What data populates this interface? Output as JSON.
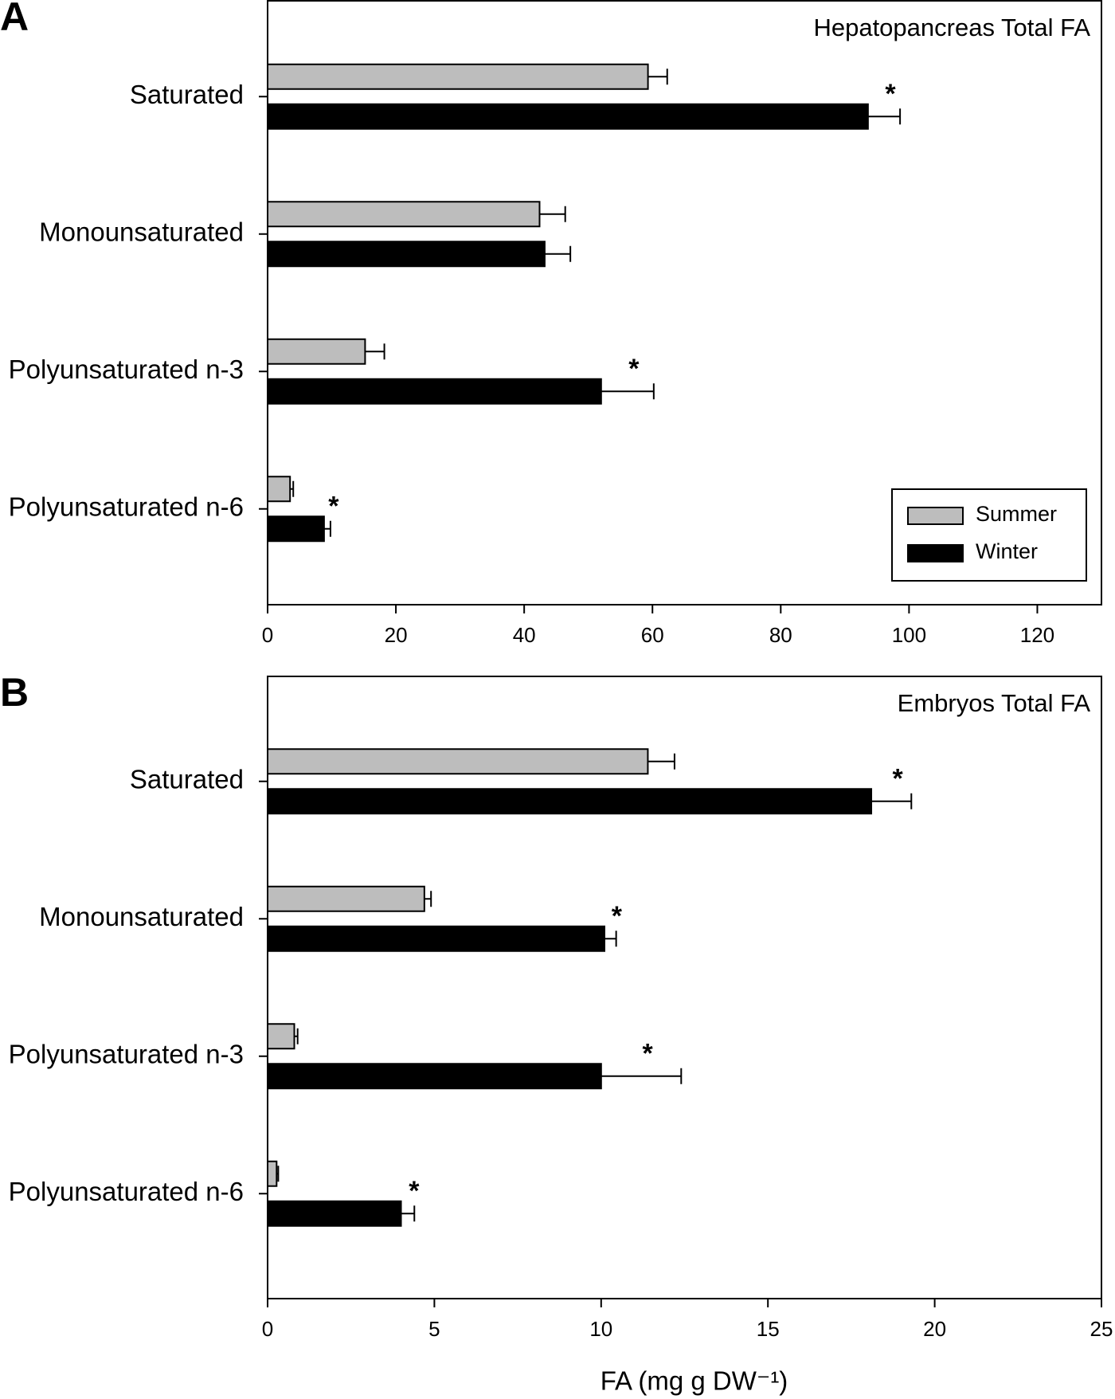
{
  "chart_data": [
    {
      "type": "bar",
      "orientation": "horizontal",
      "panel": "A",
      "title": "Hepatopancreas Total FA",
      "categories": [
        "Saturated",
        "Monounsaturated",
        "Polyunsaturated n-3",
        "Polyunsaturated n-6"
      ],
      "series": [
        {
          "name": "Summer",
          "color": "#bdbdbd",
          "values": [
            59.3,
            42.4,
            15.2,
            3.5
          ],
          "errors": [
            3,
            4,
            3,
            0.5
          ]
        },
        {
          "name": "Winter",
          "color": "#000000",
          "values": [
            93.6,
            43.2,
            52,
            8.8
          ],
          "errors": [
            5,
            4,
            8.2,
            1
          ]
        }
      ],
      "annotations": [
        {
          "text": "*",
          "category": "Saturated",
          "series": "Winter"
        },
        {
          "text": "*",
          "category": "Polyunsaturated n-3",
          "series": "Winter"
        },
        {
          "text": "*",
          "category": "Polyunsaturated n-6",
          "series": "Winter"
        }
      ],
      "xlim": [
        0,
        130
      ],
      "xticks": [
        0,
        20,
        40,
        60,
        80,
        100,
        120
      ],
      "legend": "lower right"
    },
    {
      "type": "bar",
      "orientation": "horizontal",
      "panel": "B",
      "title": "Embryos Total FA",
      "categories": [
        "Saturated",
        "Monounsaturated",
        "Polyunsaturated n-3",
        "Polyunsaturated n-6"
      ],
      "series": [
        {
          "name": "Summer",
          "color": "#bdbdbd",
          "values": [
            11.4,
            4.7,
            0.8,
            0.27
          ],
          "errors": [
            0.8,
            0.2,
            0.1,
            0.05
          ]
        },
        {
          "name": "Winter",
          "color": "#000000",
          "values": [
            18.1,
            10.1,
            10,
            4
          ],
          "errors": [
            1.2,
            0.35,
            2.4,
            0.4
          ]
        }
      ],
      "annotations": [
        {
          "text": "*",
          "category": "Saturated",
          "series": "Winter"
        },
        {
          "text": "*",
          "category": "Monounsaturated",
          "series": "Winter"
        },
        {
          "text": "*",
          "category": "Polyunsaturated n-3",
          "series": "Winter"
        },
        {
          "text": "*",
          "category": "Polyunsaturated n-6",
          "series": "Winter"
        }
      ],
      "xlim": [
        0,
        25
      ],
      "xticks": [
        0,
        5,
        10,
        15,
        20,
        25
      ],
      "xlabel": "FA (mg g DW⁻¹)"
    }
  ]
}
